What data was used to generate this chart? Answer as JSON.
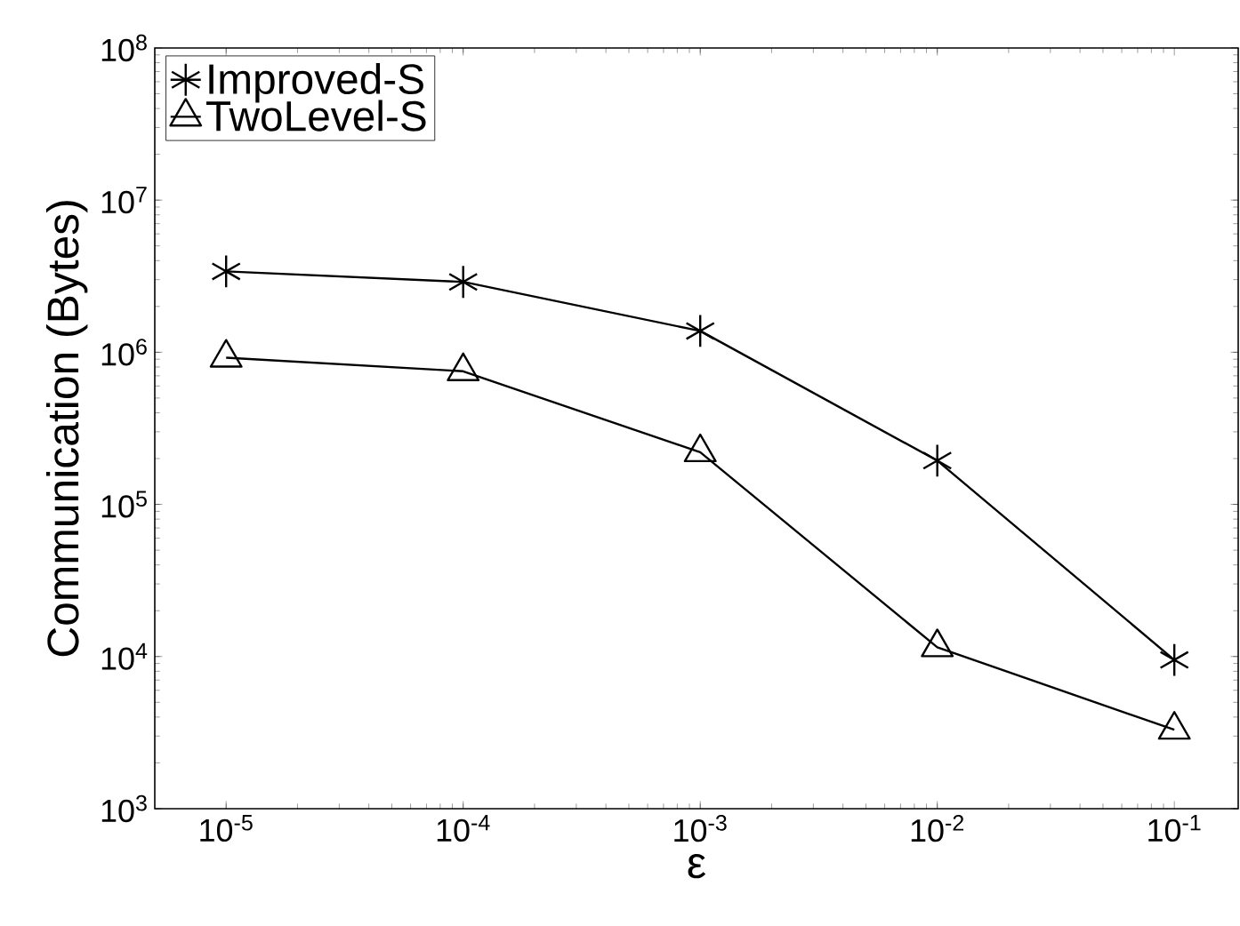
{
  "chart_data": {
    "type": "line",
    "xlabel": "ε",
    "ylabel": "Communication (Bytes)",
    "x": [
      1e-05,
      0.0001,
      0.001,
      0.01,
      0.1
    ],
    "series": [
      {
        "name": "Improved-S",
        "color": "#000000",
        "marker": "cross",
        "values": [
          3400000,
          2900000,
          1380000,
          194000,
          9500
        ]
      },
      {
        "name": "TwoLevel-S",
        "color": "#000000",
        "marker": "triangle",
        "values": [
          920000,
          750000,
          220000,
          11500,
          3300
        ]
      }
    ],
    "log": "xy",
    "xlim": [
      5e-06,
      0.186
    ],
    "ylim": [
      1000,
      100000000
    ],
    "xticks": [
      {
        "value": 1e-05,
        "label": "10$^{-5}$"
      },
      {
        "value": 0.0001,
        "label": "10$^{-4}$"
      },
      {
        "value": 0.001,
        "label": "10$^{-3}$"
      },
      {
        "value": 0.01,
        "label": "10$^{-2}$"
      },
      {
        "value": 0.1,
        "label": "10$^{-1}$"
      }
    ],
    "yticks": [
      {
        "value": 1000,
        "label": "10$^{3}$"
      },
      {
        "value": 10000,
        "label": "10$^{4}$"
      },
      {
        "value": 100000,
        "label": "10$^{5}$"
      },
      {
        "value": 1000000,
        "label": "10$^{6}$"
      },
      {
        "value": 10000000,
        "label": "10$^{7}$"
      },
      {
        "value": 100000000,
        "label": "10$^{8}$"
      }
    ],
    "grid": false,
    "legend": "top left",
    "line_style": "solid"
  }
}
